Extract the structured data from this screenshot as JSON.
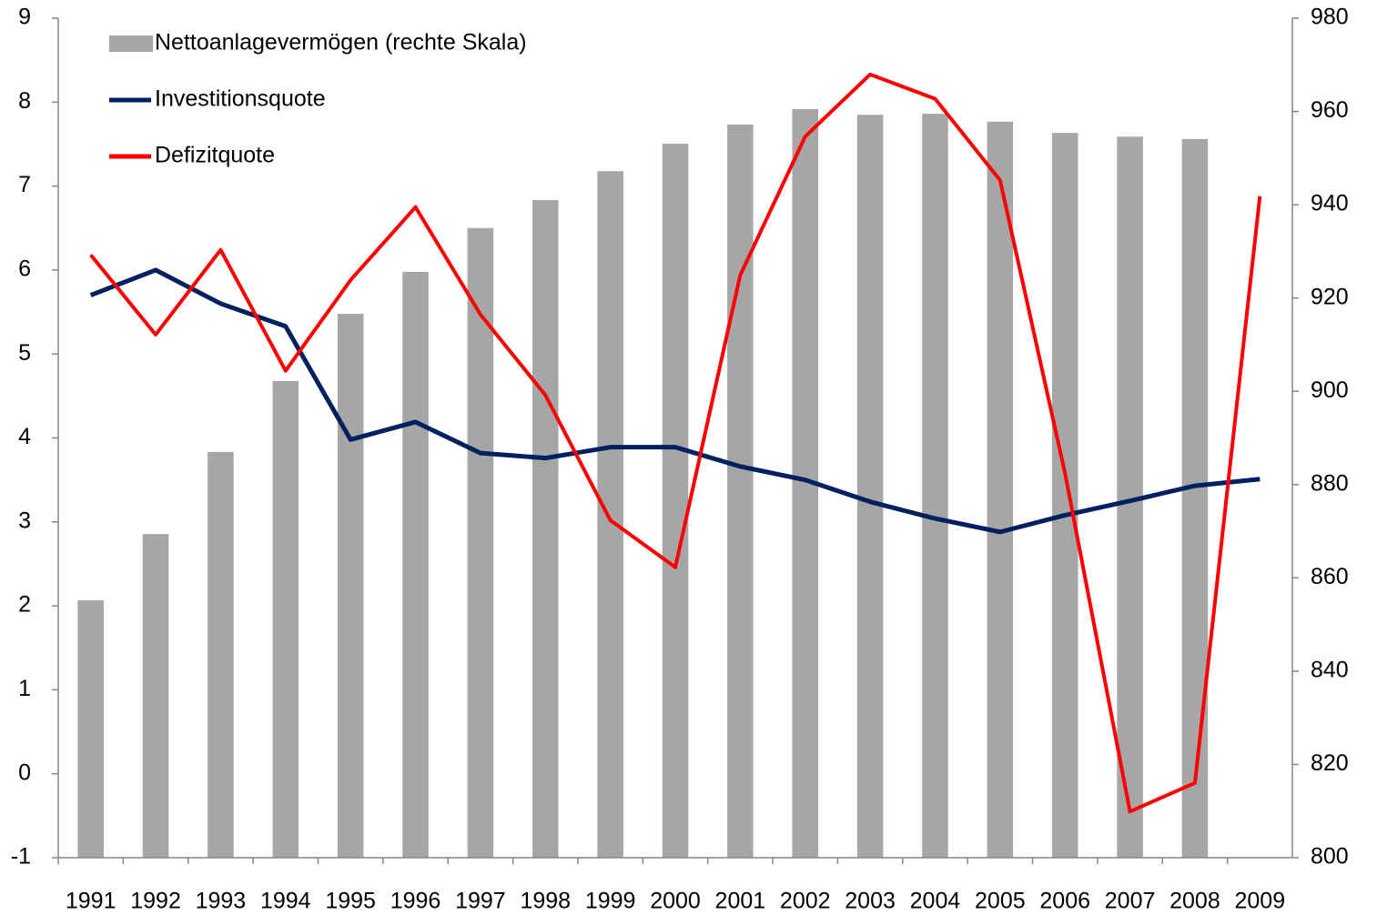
{
  "chart_data": {
    "type": "bar-line",
    "categories": [
      "1991",
      "1992",
      "1993",
      "1994",
      "1995",
      "1996",
      "1997",
      "1998",
      "1999",
      "2000",
      "2001",
      "2002",
      "2003",
      "2004",
      "2005",
      "2006",
      "2007",
      "2008",
      "2009"
    ],
    "series": [
      {
        "name": "Nettoanlagevermögen (rechte Skala)",
        "type": "bar",
        "axis": "y2",
        "color": "#a6a6a6",
        "values": [
          855.2,
          869.4,
          887,
          902.2,
          916.6,
          925.6,
          935,
          941,
          947.2,
          953.1,
          957.2,
          960.5,
          959.3,
          959.5,
          957.8,
          955.4,
          954.6,
          954.1,
          null
        ]
      },
      {
        "name": "Investitionsquote",
        "type": "line",
        "color": "#002060",
        "values": [
          5.7,
          6.0,
          5.6,
          5.33,
          3.98,
          4.19,
          3.82,
          3.76,
          3.89,
          3.89,
          3.66,
          3.5,
          3.24,
          3.04,
          2.88,
          3.08,
          3.25,
          3.43,
          3.51
        ]
      },
      {
        "name": "Defizitquote",
        "type": "line",
        "color": "#ff0000",
        "values": [
          6.18,
          5.23,
          6.24,
          4.8,
          5.88,
          6.75,
          5.47,
          4.51,
          3.02,
          2.46,
          5.94,
          7.59,
          8.33,
          8.04,
          7.07,
          3.58,
          -0.45,
          -0.11,
          6.88
        ]
      }
    ],
    "ylim": [
      -1,
      9
    ],
    "yticks": [
      -1,
      0,
      1,
      2,
      3,
      4,
      5,
      6,
      7,
      8,
      9
    ],
    "y2lim": [
      800,
      980
    ],
    "y2ticks": [
      800,
      820,
      840,
      860,
      880,
      900,
      920,
      940,
      960,
      980
    ],
    "grid": false,
    "legend": "top-left"
  }
}
